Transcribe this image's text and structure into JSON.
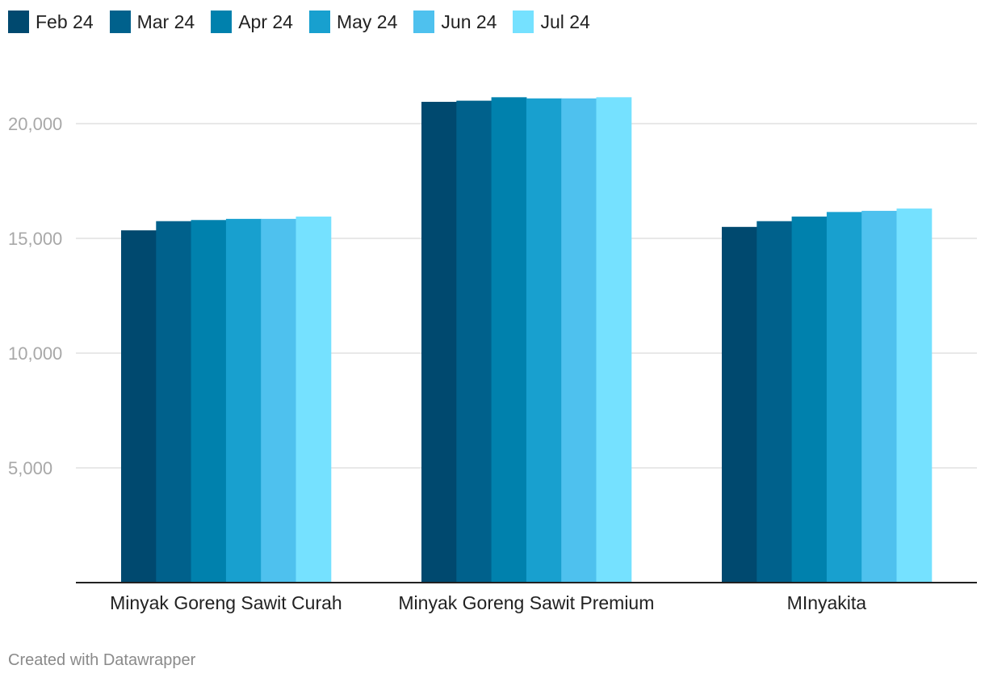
{
  "chart_data": {
    "type": "bar",
    "categories": [
      "Minyak Goreng Sawit Curah",
      "Minyak Goreng Sawit Premium",
      "MInyakita"
    ],
    "series": [
      {
        "name": "Feb 24",
        "color": "#00496f",
        "values": [
          15350,
          20950,
          15500
        ]
      },
      {
        "name": "Mar 24",
        "color": "#00618c",
        "values": [
          15750,
          21000,
          15750
        ]
      },
      {
        "name": "Apr 24",
        "color": "#0081ad",
        "values": [
          15800,
          21150,
          15950
        ]
      },
      {
        "name": "May 24",
        "color": "#18a0cf",
        "values": [
          15850,
          21100,
          16150
        ]
      },
      {
        "name": "Jun 24",
        "color": "#4ec1ee",
        "values": [
          15850,
          21100,
          16200
        ]
      },
      {
        "name": "Jul 24",
        "color": "#75e1ff",
        "values": [
          15950,
          21150,
          16300
        ]
      }
    ],
    "y_ticks": [
      "5,000",
      "10,000",
      "15,000",
      "20,000"
    ],
    "y_tick_values": [
      5000,
      10000,
      15000,
      20000
    ],
    "ylim": [
      0,
      22000
    ],
    "grid": true,
    "legend_position": "top-left"
  },
  "footer": {
    "credit": "Created with Datawrapper"
  }
}
